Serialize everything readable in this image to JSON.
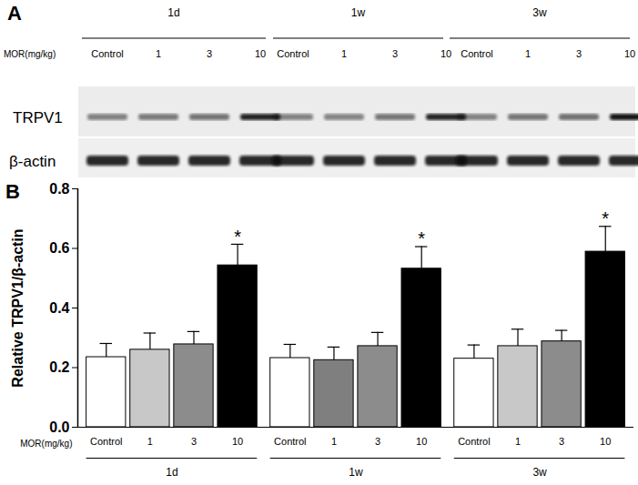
{
  "blot": {
    "panel": "A",
    "time_points": [
      "1d",
      "1w",
      "3w"
    ],
    "dose_label": "MOR(mg/kg)",
    "lanes": [
      "Control",
      "1",
      "3",
      "10"
    ],
    "rows": [
      "TRPV1",
      "β-actin"
    ]
  },
  "chart_data": {
    "type": "bar",
    "panel": "B",
    "y_label": "Relative TRPV1/β-actin",
    "x_label": "MOR(mg/kg)",
    "categories": [
      "Control",
      "1",
      "3",
      "10"
    ],
    "groups": [
      {
        "label": "1d",
        "values": [
          0.235,
          0.26,
          0.278,
          0.543
        ],
        "errors": [
          0.046,
          0.056,
          0.043,
          0.071
        ],
        "colors": [
          "#ffffff",
          "#c8c8c8",
          "#8c8c8c",
          "#000000"
        ],
        "significance": [
          null,
          null,
          null,
          "*"
        ]
      },
      {
        "label": "1w",
        "values": [
          0.232,
          0.225,
          0.272,
          0.532
        ],
        "errors": [
          0.046,
          0.044,
          0.046,
          0.074
        ],
        "colors": [
          "#ffffff",
          "#7f7f7f",
          "#8c8c8c",
          "#000000"
        ],
        "significance": [
          null,
          null,
          null,
          "*"
        ]
      },
      {
        "label": "3w",
        "values": [
          0.23,
          0.272,
          0.288,
          0.589
        ],
        "errors": [
          0.046,
          0.057,
          0.037,
          0.085
        ],
        "colors": [
          "#ffffff",
          "#c8c8c8",
          "#8c8c8c",
          "#000000"
        ],
        "significance": [
          null,
          null,
          null,
          "*"
        ]
      }
    ],
    "ylim": [
      0,
      0.8
    ],
    "yticks": [
      {
        "value": 0,
        "label": "0.0"
      },
      {
        "value": 0.2,
        "label": "0.2"
      },
      {
        "value": 0.4,
        "label": "0.4"
      },
      {
        "value": 0.6,
        "label": "0.6"
      },
      {
        "value": 0.8,
        "label": "0.8"
      }
    ]
  }
}
